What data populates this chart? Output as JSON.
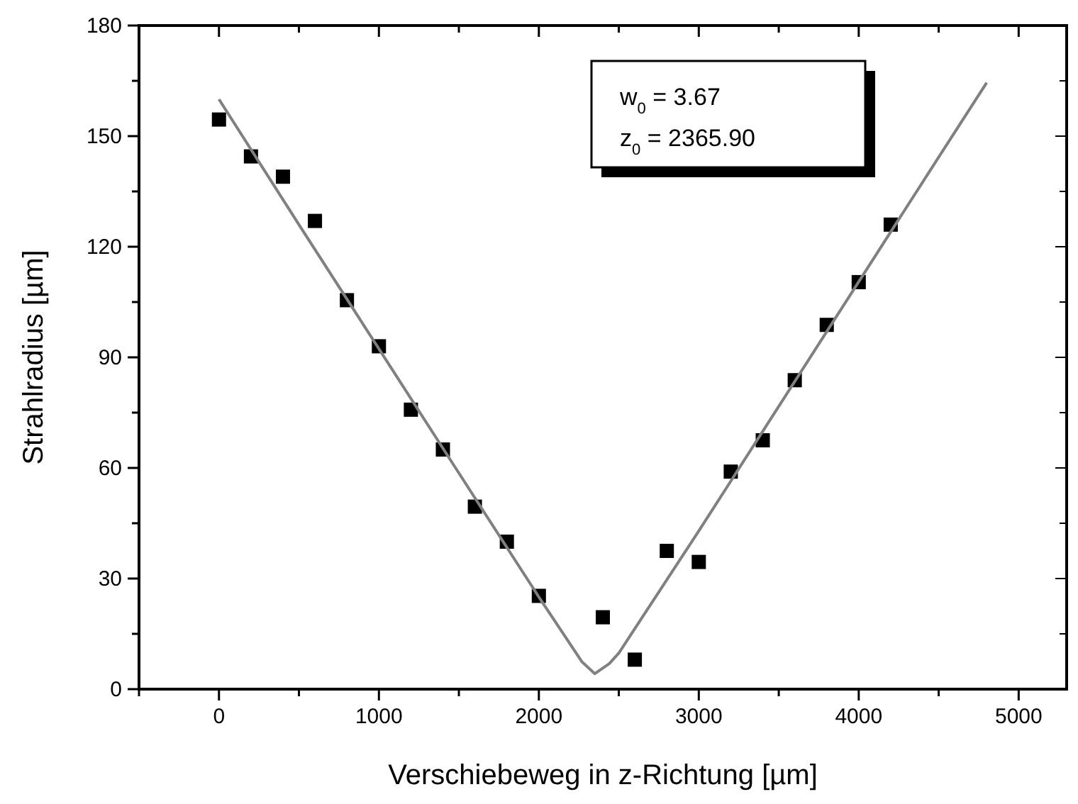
{
  "chart_data": {
    "type": "scatter",
    "xlabel": "Verschiebeweg in z-Richtung [µm]",
    "ylabel": "Strahlradius [µm]",
    "xlim": [
      -500,
      5300
    ],
    "xticks": [
      {
        "value": -500,
        "label": null
      },
      0,
      {
        "value": 500,
        "label": null
      },
      1000,
      {
        "value": 1500,
        "label": null
      },
      2000,
      {
        "value": 2500,
        "label": null
      },
      3000,
      {
        "value": 3500,
        "label": null
      },
      4000,
      {
        "value": 4500,
        "label": null
      },
      5000
    ],
    "ylim": [
      0,
      180
    ],
    "yticks": [
      0,
      {
        "value": 15,
        "label": null
      },
      30,
      {
        "value": 45,
        "label": null
      },
      60,
      {
        "value": 75,
        "label": null
      },
      90,
      {
        "value": 105,
        "label": null
      },
      120,
      {
        "value": 135,
        "label": null
      },
      150,
      {
        "value": 165,
        "label": null
      },
      180
    ],
    "grid": false,
    "annotations": [
      "w$_{0}$ = 3.67",
      "z$_{0}$ = 2365.90"
    ],
    "series": [
      {
        "marker": "square",
        "color": "#000000",
        "x": [
          0,
          200,
          400,
          600,
          800,
          1000,
          1200,
          1400,
          1600,
          1800,
          2000,
          2400,
          2600,
          2800,
          3000,
          3200,
          3400,
          3600,
          3800,
          4000,
          4200
        ],
        "values": [
          154.5,
          144.5,
          139,
          127,
          105.5,
          93,
          75.8,
          65,
          49.5,
          40,
          25.3,
          19.5,
          8,
          37.5,
          34.5,
          59,
          67.5,
          83.8,
          98.8,
          110.4,
          126
        ]
      },
      {
        "type": "line",
        "line_style": "solid",
        "color": "#808080",
        "x": [
          0,
          500,
          1000,
          1500,
          2000,
          2270,
          2350,
          2440,
          2500,
          3000,
          3500,
          4000,
          4500,
          4800
        ],
        "values": [
          160,
          126,
          92.3,
          58.6,
          25,
          7.4,
          4.2,
          6.9,
          9.8,
          42.9,
          76.7,
          110.5,
          144.3,
          164.5
        ]
      }
    ]
  }
}
